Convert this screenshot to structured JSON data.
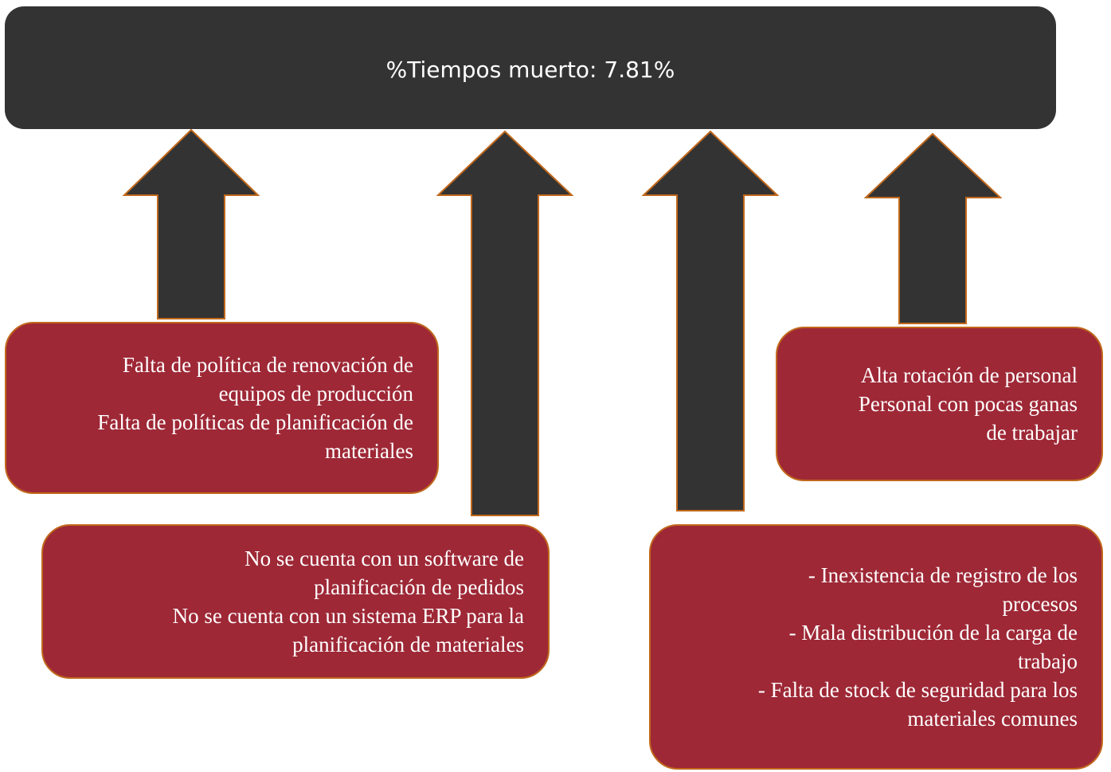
{
  "header": {
    "title": "%Tiempos muerto: 7.81%"
  },
  "boxes": [
    {
      "lines": [
        "Falta de política de renovación de",
        "equipos de producción",
        "Falta de políticas de planificación de",
        "materiales"
      ]
    },
    {
      "lines": [
        "No se cuenta con un software de",
        "planificación de pedidos",
        "No se cuenta con un sistema ERP para la",
        "planificación de materiales"
      ]
    },
    {
      "lines": [
        "- Inexistencia de registro de los",
        "procesos",
        "- Mala distribución de la carga de",
        "trabajo",
        "- Falta de stock de seguridad para los",
        "materiales comunes"
      ]
    },
    {
      "lines": [
        "Alta rotación de personal",
        "Personal con pocas ganas",
        "de trabajar"
      ]
    }
  ]
}
